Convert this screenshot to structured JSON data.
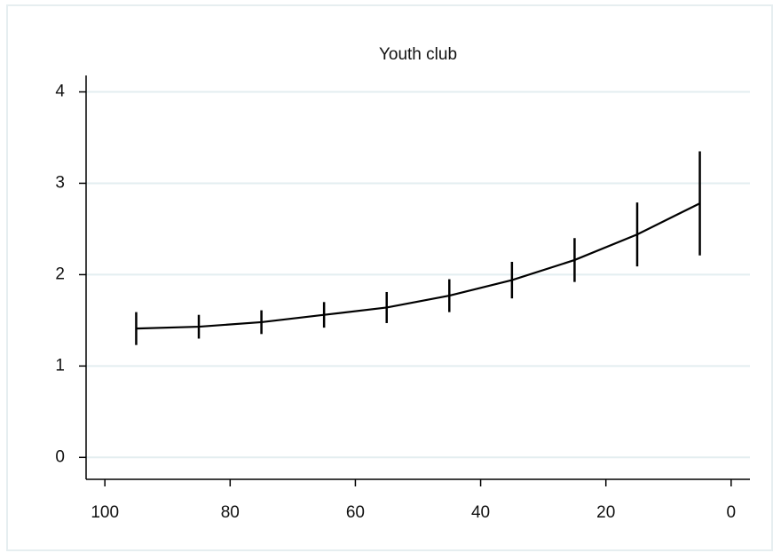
{
  "chart_data": {
    "type": "line",
    "title": "Youth club",
    "x": [
      95,
      85,
      75,
      65,
      55,
      45,
      35,
      25,
      15,
      5
    ],
    "series": [
      {
        "color": "#000000",
        "values": [
          1.41,
          1.43,
          1.48,
          1.56,
          1.64,
          1.77,
          1.94,
          2.16,
          2.44,
          2.78
        ],
        "errors": [
          0.18,
          0.13,
          0.13,
          0.14,
          0.17,
          0.18,
          0.2,
          0.24,
          0.35,
          0.57
        ]
      }
    ],
    "xlim": [
      103,
      -3
    ],
    "xticks": [
      100,
      80,
      60,
      40,
      20,
      0
    ],
    "ylim": [
      -0.24,
      4.18
    ],
    "yticks": [
      0,
      1,
      2,
      3,
      4
    ],
    "grid": true
  }
}
